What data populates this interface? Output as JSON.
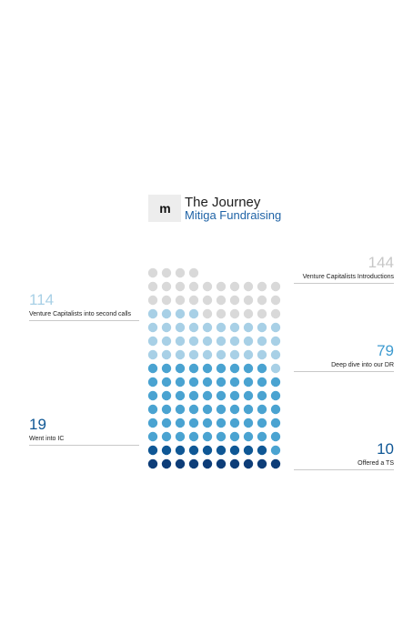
{
  "header": {
    "logo_text": "m",
    "title": "The Journey",
    "subtitle": "Mitiga Fundraising"
  },
  "colors": {
    "grey": "#d9d9d9",
    "light_blue": "#a8d0e6",
    "mid_blue": "#4aa3d1",
    "dark_blue": "#0f5795",
    "navy": "#0d3d78"
  },
  "chart_data": {
    "type": "dot-matrix",
    "columns": 10,
    "total": 144,
    "stages": [
      {
        "value": 144,
        "label": "Venture Capitalists Introductions",
        "color": "#d9d9d9",
        "number_color": "#c7c7c7",
        "side": "right"
      },
      {
        "value": 114,
        "label": "Venture Capitalists into second calls",
        "color": "#a8d0e6",
        "number_color": "#a8d0e6",
        "side": "left"
      },
      {
        "value": 79,
        "label": "Deep dive into our DR",
        "color": "#4aa3d1",
        "number_color": "#3e9bd0",
        "side": "right"
      },
      {
        "value": 19,
        "label": "Went into IC",
        "color": "#0f5795",
        "number_color": "#0f5795",
        "side": "left"
      },
      {
        "value": 10,
        "label": "Offered a TS",
        "color": "#0d3d78",
        "number_color": "#0f5795",
        "side": "right"
      }
    ]
  }
}
